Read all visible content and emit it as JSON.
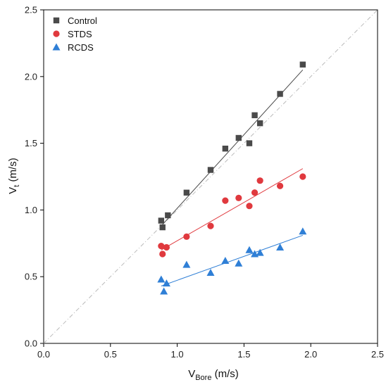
{
  "chart_data": {
    "type": "scatter",
    "title": "",
    "xlabel_main": "V",
    "xlabel_sub": "Bore",
    "xlabel_unit": " (m/s)",
    "ylabel_main": "V",
    "ylabel_sub": "t",
    "ylabel_unit": " (m/s)",
    "xlim": [
      0.0,
      2.5
    ],
    "ylim": [
      0.0,
      2.5
    ],
    "xticks": [
      "0.0",
      "0.5",
      "1.0",
      "1.5",
      "2.0",
      "2.5"
    ],
    "yticks": [
      "0.0",
      "0.5",
      "1.0",
      "1.5",
      "2.0",
      "2.5"
    ],
    "grid": false,
    "legend_position": "top-left",
    "reference_line": {
      "type": "identity",
      "style": "dash-dot",
      "color": "#bbbbbb"
    },
    "series": [
      {
        "name": "Control",
        "marker": "square",
        "color": "#4a4a4a",
        "x": [
          0.88,
          0.89,
          0.93,
          1.07,
          1.25,
          1.36,
          1.46,
          1.54,
          1.58,
          1.62,
          1.77,
          1.94
        ],
        "y": [
          0.92,
          0.87,
          0.96,
          1.13,
          1.3,
          1.46,
          1.54,
          1.5,
          1.71,
          1.65,
          1.87,
          2.09
        ],
        "fit": {
          "x": [
            0.88,
            1.94
          ],
          "y": [
            0.88,
            2.05
          ]
        }
      },
      {
        "name": "STDS",
        "marker": "circle",
        "color": "#e0393e",
        "x": [
          0.88,
          0.89,
          0.92,
          1.07,
          1.25,
          1.36,
          1.46,
          1.54,
          1.58,
          1.62,
          1.77,
          1.94
        ],
        "y": [
          0.73,
          0.67,
          0.72,
          0.8,
          0.88,
          1.07,
          1.09,
          1.03,
          1.13,
          1.22,
          1.18,
          1.25
        ],
        "fit": {
          "x": [
            0.88,
            1.94
          ],
          "y": [
            0.7,
            1.31
          ]
        }
      },
      {
        "name": "RCDS",
        "marker": "triangle",
        "color": "#2f7fd6",
        "x": [
          0.88,
          0.9,
          0.92,
          1.07,
          1.25,
          1.36,
          1.46,
          1.54,
          1.58,
          1.62,
          1.77,
          1.94
        ],
        "y": [
          0.48,
          0.39,
          0.45,
          0.59,
          0.53,
          0.62,
          0.6,
          0.7,
          0.67,
          0.68,
          0.72,
          0.84
        ],
        "fit": {
          "x": [
            0.88,
            1.94
          ],
          "y": [
            0.43,
            0.81
          ]
        }
      }
    ]
  }
}
